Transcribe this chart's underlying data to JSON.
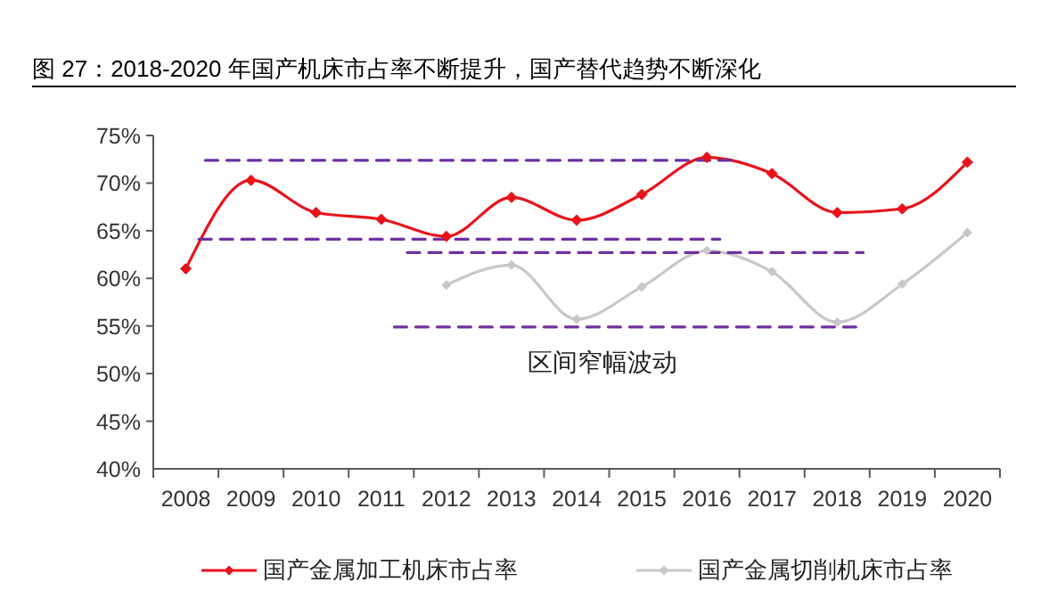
{
  "chart_data": {
    "type": "line",
    "title": "图 27：2018-2020 年国产机床市占率不断提升，国产替代趋势不断深化",
    "x": [
      2008,
      2009,
      2010,
      2011,
      2012,
      2013,
      2014,
      2015,
      2016,
      2017,
      2018,
      2019,
      2020
    ],
    "xlim": [
      2007.5,
      2020.5
    ],
    "xticks": [
      {
        "value": 2007.5,
        "label": null
      },
      2008,
      {
        "value": 2008.5,
        "label": null
      },
      2009,
      {
        "value": 2009.5,
        "label": null
      },
      2010,
      {
        "value": 2010.5,
        "label": null
      },
      2011,
      {
        "value": 2011.5,
        "label": null
      },
      2012,
      {
        "value": 2012.5,
        "label": null
      },
      2013,
      {
        "value": 2013.5,
        "label": null
      },
      2014,
      {
        "value": 2014.5,
        "label": null
      },
      2015,
      {
        "value": 2015.5,
        "label": null
      },
      2016,
      {
        "value": 2016.5,
        "label": null
      },
      2017,
      {
        "value": 2017.5,
        "label": null
      },
      2018,
      {
        "value": 2018.5,
        "label": null
      },
      2019,
      {
        "value": 2019.5,
        "label": null
      },
      2020,
      {
        "value": 2020.5,
        "label": null
      }
    ],
    "ylim": [
      40,
      75
    ],
    "yticks": [
      {
        "value": 40,
        "label": "40%"
      },
      {
        "value": 45,
        "label": "45%"
      },
      {
        "value": 50,
        "label": "50%"
      },
      {
        "value": 55,
        "label": "55%"
      },
      {
        "value": 60,
        "label": "60%"
      },
      {
        "value": 65,
        "label": "65%"
      },
      {
        "value": 70,
        "label": "70%"
      },
      {
        "value": 75,
        "label": "75%"
      }
    ],
    "series": [
      {
        "name": "国产金属加工机床市占率",
        "color": "#e8131b",
        "values": [
          61.0,
          70.3,
          66.9,
          66.2,
          64.4,
          68.5,
          66.1,
          68.8,
          72.7,
          71.0,
          66.9,
          67.3,
          72.2
        ]
      },
      {
        "name": "国产金属切削机床市占率",
        "color": "#c8c8c8",
        "values": [
          null,
          null,
          null,
          null,
          59.3,
          61.4,
          55.7,
          59.1,
          62.9,
          60.7,
          55.4,
          59.4,
          64.8
        ]
      },
      {
        "color": "#7030a0",
        "x": [
          2008.3,
          2016.4
        ],
        "values": [
          72.4,
          72.4
        ],
        "line_style": "dashed",
        "marker": "none"
      },
      {
        "color": "#7030a0",
        "x": [
          2008.2,
          2016.2
        ],
        "values": [
          64.1,
          64.1
        ],
        "line_style": "dashed",
        "marker": "none"
      },
      {
        "color": "#7030a0",
        "x": [
          2011.4,
          2018.4
        ],
        "values": [
          62.7,
          62.7
        ],
        "line_style": "dashed",
        "marker": "none"
      },
      {
        "color": "#7030a0",
        "x": [
          2011.2,
          2018.3
        ],
        "values": [
          54.9,
          54.9
        ],
        "line_style": "dashed",
        "marker": "none"
      }
    ],
    "annotations": [
      "区间窄幅波动"
    ],
    "marker": "diamond",
    "line_style": "solid",
    "legend": "bottom"
  }
}
